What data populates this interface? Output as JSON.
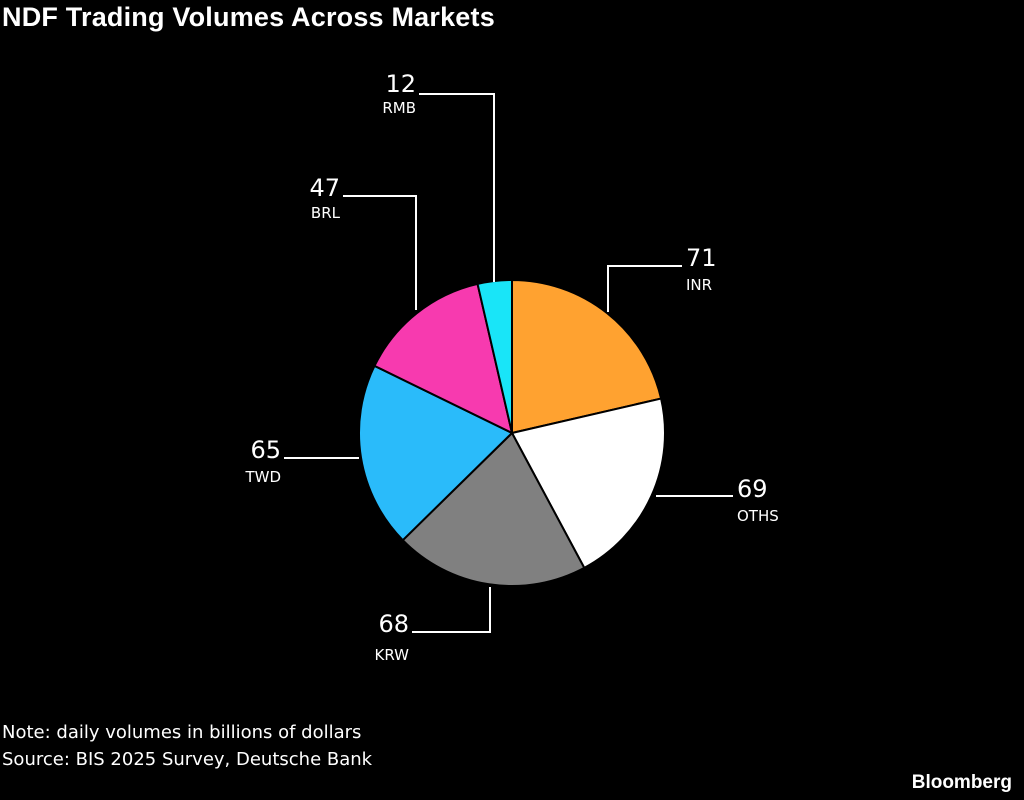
{
  "chart_data": {
    "type": "pie",
    "title": "NDF Trading Volumes Across Markets",
    "categories": [
      "INR",
      "OTHS",
      "KRW",
      "TWD",
      "BRL",
      "RMB"
    ],
    "values": [
      71,
      69,
      68,
      65,
      47,
      12
    ],
    "colors": [
      "#ffa230",
      "#ffffff",
      "#808080",
      "#2abbfa",
      "#f73aaf",
      "#19e5f8"
    ],
    "note": "Note: daily volumes in billions of dollars",
    "source": "Source: BIS 2025 Survey, Deutsche Bank"
  },
  "brand": "Bloomberg"
}
